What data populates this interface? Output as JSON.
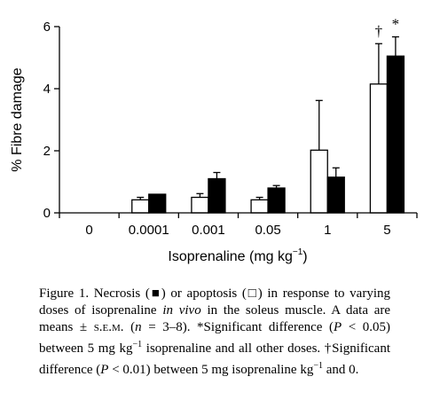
{
  "chart_data": {
    "type": "bar",
    "xlabel": "Isoprenaline (mg kg",
    "xlabel_sup": "−1",
    "xlabel_end": ")",
    "ylabel": "% Fibre damage",
    "ylim": [
      0,
      6
    ],
    "yticks": [
      0,
      2,
      4,
      6
    ],
    "categories": [
      "0",
      "0.0001",
      "0.001",
      "0.05",
      "1",
      "5"
    ],
    "series": [
      {
        "key": "apoptosis",
        "fill": "#ffffff",
        "values": [
          0,
          0.42,
          0.5,
          0.42,
          2.02,
          4.15
        ],
        "errors": [
          0,
          0.08,
          0.12,
          0.08,
          1.6,
          1.3
        ]
      },
      {
        "key": "necrosis",
        "fill": "#000000",
        "values": [
          0,
          0.6,
          1.1,
          0.8,
          1.15,
          5.05
        ],
        "errors": [
          0,
          0,
          0.2,
          0.08,
          0.3,
          0.62
        ]
      }
    ],
    "annotations": [
      {
        "category": "5",
        "series": "apoptosis",
        "text": "†"
      },
      {
        "category": "5",
        "series": "necrosis",
        "text": "*"
      }
    ]
  },
  "caption": {
    "p1": "Figure 1. Necrosis (",
    "sym_necrosis": "■",
    "p2": ") or apoptosis (",
    "sym_apoptosis": "□",
    "p3": ") in response to varying doses of isoprenaline ",
    "p4_italic": "in vivo",
    "p5": " in the soleus muscle. A data are means ± ",
    "p6_sc": "s.e.m.",
    "p7": " (",
    "p8_italic": "n",
    "p9": " = 3–8). *Significant difference (",
    "p10_italic": "P",
    "p11": " < 0.05) between 5 mg kg",
    "p12_sup": "−1",
    "p13": " isoprenaline and all other doses. †Significant difference (",
    "p14_italic": "P",
    "p15": " < 0.01) between 5 mg isoprenaline kg",
    "p16_sup": "−1",
    "p17": " and 0."
  }
}
